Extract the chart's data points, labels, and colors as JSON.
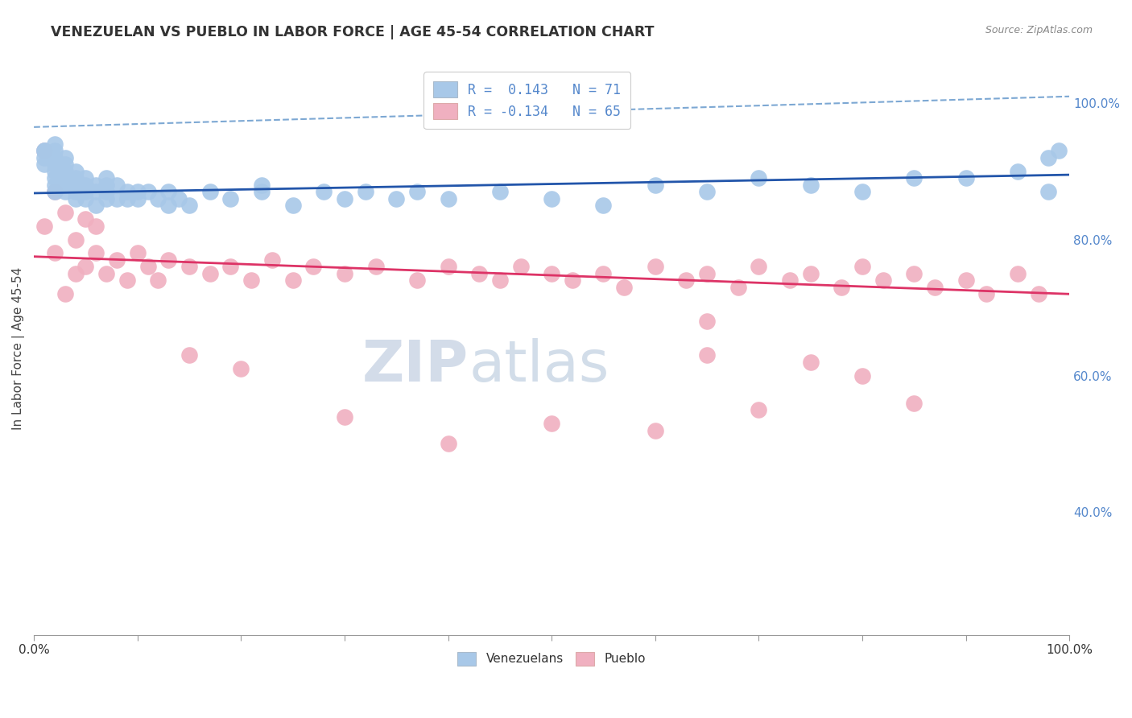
{
  "title": "VENEZUELAN VS PUEBLO IN LABOR FORCE | AGE 45-54 CORRELATION CHART",
  "source": "Source: ZipAtlas.com",
  "ylabel": "In Labor Force | Age 45-54",
  "xlim": [
    0.0,
    1.0
  ],
  "ylim": [
    0.22,
    1.06
  ],
  "y_tick_vals_right": [
    0.4,
    0.6,
    0.8,
    1.0
  ],
  "y_tick_labels_right": [
    "40.0%",
    "60.0%",
    "80.0%",
    "100.0%"
  ],
  "blue_color": "#a8c8e8",
  "pink_color": "#f0b0c0",
  "blue_line_color": "#2255aa",
  "pink_line_color": "#dd3366",
  "blue_dashed_color": "#6699cc",
  "right_axis_color": "#5588cc",
  "watermark_color": "#ccd8e8",
  "venezuelan_x": [
    0.01,
    0.01,
    0.01,
    0.01,
    0.02,
    0.02,
    0.02,
    0.02,
    0.02,
    0.02,
    0.02,
    0.02,
    0.03,
    0.03,
    0.03,
    0.03,
    0.03,
    0.03,
    0.04,
    0.04,
    0.04,
    0.04,
    0.04,
    0.05,
    0.05,
    0.05,
    0.05,
    0.06,
    0.06,
    0.06,
    0.07,
    0.07,
    0.07,
    0.07,
    0.08,
    0.08,
    0.09,
    0.09,
    0.1,
    0.1,
    0.11,
    0.12,
    0.13,
    0.13,
    0.14,
    0.15,
    0.17,
    0.19,
    0.22,
    0.22,
    0.25,
    0.28,
    0.3,
    0.32,
    0.35,
    0.37,
    0.4,
    0.45,
    0.5,
    0.55,
    0.6,
    0.65,
    0.7,
    0.75,
    0.8,
    0.85,
    0.9,
    0.95,
    0.98,
    0.98,
    0.99
  ],
  "venezuelan_y": [
    0.91,
    0.92,
    0.93,
    0.93,
    0.87,
    0.88,
    0.89,
    0.9,
    0.91,
    0.92,
    0.93,
    0.94,
    0.87,
    0.88,
    0.89,
    0.9,
    0.91,
    0.92,
    0.86,
    0.87,
    0.88,
    0.89,
    0.9,
    0.86,
    0.87,
    0.88,
    0.89,
    0.85,
    0.87,
    0.88,
    0.86,
    0.87,
    0.88,
    0.89,
    0.86,
    0.88,
    0.86,
    0.87,
    0.86,
    0.87,
    0.87,
    0.86,
    0.85,
    0.87,
    0.86,
    0.85,
    0.87,
    0.86,
    0.87,
    0.88,
    0.85,
    0.87,
    0.86,
    0.87,
    0.86,
    0.87,
    0.86,
    0.87,
    0.86,
    0.85,
    0.88,
    0.87,
    0.89,
    0.88,
    0.87,
    0.89,
    0.89,
    0.9,
    0.92,
    0.87,
    0.93
  ],
  "pueblo_x": [
    0.01,
    0.01,
    0.02,
    0.02,
    0.03,
    0.03,
    0.04,
    0.04,
    0.05,
    0.05,
    0.06,
    0.06,
    0.07,
    0.08,
    0.09,
    0.1,
    0.11,
    0.12,
    0.13,
    0.15,
    0.17,
    0.19,
    0.21,
    0.23,
    0.25,
    0.27,
    0.3,
    0.33,
    0.37,
    0.4,
    0.43,
    0.45,
    0.47,
    0.5,
    0.52,
    0.55,
    0.57,
    0.6,
    0.63,
    0.65,
    0.68,
    0.7,
    0.73,
    0.75,
    0.78,
    0.8,
    0.82,
    0.85,
    0.87,
    0.9,
    0.92,
    0.95,
    0.97,
    0.3,
    0.5,
    0.65,
    0.75,
    0.85,
    0.8,
    0.65,
    0.15,
    0.2,
    0.4,
    0.6,
    0.7
  ],
  "pueblo_y": [
    0.93,
    0.82,
    0.87,
    0.78,
    0.84,
    0.72,
    0.8,
    0.75,
    0.83,
    0.76,
    0.78,
    0.82,
    0.75,
    0.77,
    0.74,
    0.78,
    0.76,
    0.74,
    0.77,
    0.76,
    0.75,
    0.76,
    0.74,
    0.77,
    0.74,
    0.76,
    0.75,
    0.76,
    0.74,
    0.76,
    0.75,
    0.74,
    0.76,
    0.75,
    0.74,
    0.75,
    0.73,
    0.76,
    0.74,
    0.75,
    0.73,
    0.76,
    0.74,
    0.75,
    0.73,
    0.76,
    0.74,
    0.75,
    0.73,
    0.74,
    0.72,
    0.75,
    0.72,
    0.54,
    0.53,
    0.63,
    0.62,
    0.56,
    0.6,
    0.68,
    0.63,
    0.61,
    0.5,
    0.52,
    0.55
  ],
  "ven_line_x0": 0.0,
  "ven_line_y0": 0.868,
  "ven_line_x1": 1.0,
  "ven_line_y1": 0.895,
  "pue_line_x0": 0.0,
  "pue_line_y0": 0.775,
  "pue_line_x1": 1.0,
  "pue_line_y1": 0.72,
  "dash_line_x0": 0.0,
  "dash_line_y0": 0.965,
  "dash_line_x1": 1.0,
  "dash_line_y1": 1.01
}
